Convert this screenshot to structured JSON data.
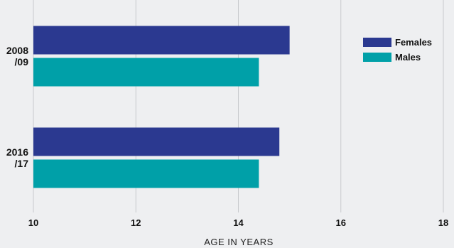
{
  "chart_data": {
    "type": "bar",
    "orientation": "horizontal",
    "title": "",
    "xlabel": "AGE IN YEARS",
    "ylabel": "",
    "xlim": [
      10,
      18
    ],
    "xticks": [
      "10",
      "12",
      "14",
      "16",
      "18"
    ],
    "grid": true,
    "legend_position": "top-right",
    "categories": [
      {
        "lines": [
          "2008",
          "/09"
        ]
      },
      {
        "lines": [
          "2016",
          "/17"
        ]
      }
    ],
    "series": [
      {
        "name": "Females",
        "color": "#2b3990",
        "values": [
          15.0,
          14.8
        ]
      },
      {
        "name": "Males",
        "color": "#00a0a8",
        "values": [
          14.4,
          14.4
        ]
      }
    ]
  }
}
